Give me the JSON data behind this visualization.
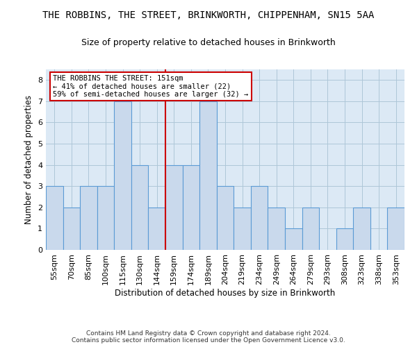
{
  "title": "THE ROBBINS, THE STREET, BRINKWORTH, CHIPPENHAM, SN15 5AA",
  "subtitle": "Size of property relative to detached houses in Brinkworth",
  "xlabel": "Distribution of detached houses by size in Brinkworth",
  "ylabel": "Number of detached properties",
  "categories": [
    "55sqm",
    "70sqm",
    "85sqm",
    "100sqm",
    "115sqm",
    "130sqm",
    "144sqm",
    "159sqm",
    "174sqm",
    "189sqm",
    "204sqm",
    "219sqm",
    "234sqm",
    "249sqm",
    "264sqm",
    "279sqm",
    "293sqm",
    "308sqm",
    "323sqm",
    "338sqm",
    "353sqm"
  ],
  "values": [
    3,
    2,
    3,
    3,
    7,
    4,
    2,
    4,
    4,
    7,
    3,
    2,
    3,
    2,
    1,
    2,
    0,
    1,
    2,
    0,
    2
  ],
  "bar_color": "#c9d9ec",
  "bar_edge_color": "#5b9bd5",
  "ref_line_color": "#cc0000",
  "annotation_title": "THE ROBBINS THE STREET: 151sqm",
  "annotation_line1": "← 41% of detached houses are smaller (22)",
  "annotation_line2": "59% of semi-detached houses are larger (32) →",
  "annotation_box_color": "#ffffff",
  "annotation_box_edge_color": "#cc0000",
  "ylim": [
    0,
    8.5
  ],
  "yticks": [
    0,
    1,
    2,
    3,
    4,
    5,
    6,
    7,
    8
  ],
  "grid_color": "#aec6d8",
  "background_color": "#dce9f5",
  "footer": "Contains HM Land Registry data © Crown copyright and database right 2024.\nContains public sector information licensed under the Open Government Licence v3.0.",
  "title_fontsize": 10,
  "subtitle_fontsize": 9,
  "xlabel_fontsize": 8.5,
  "ylabel_fontsize": 8.5,
  "tick_fontsize": 8,
  "annotation_fontsize": 7.5,
  "footer_fontsize": 6.5
}
